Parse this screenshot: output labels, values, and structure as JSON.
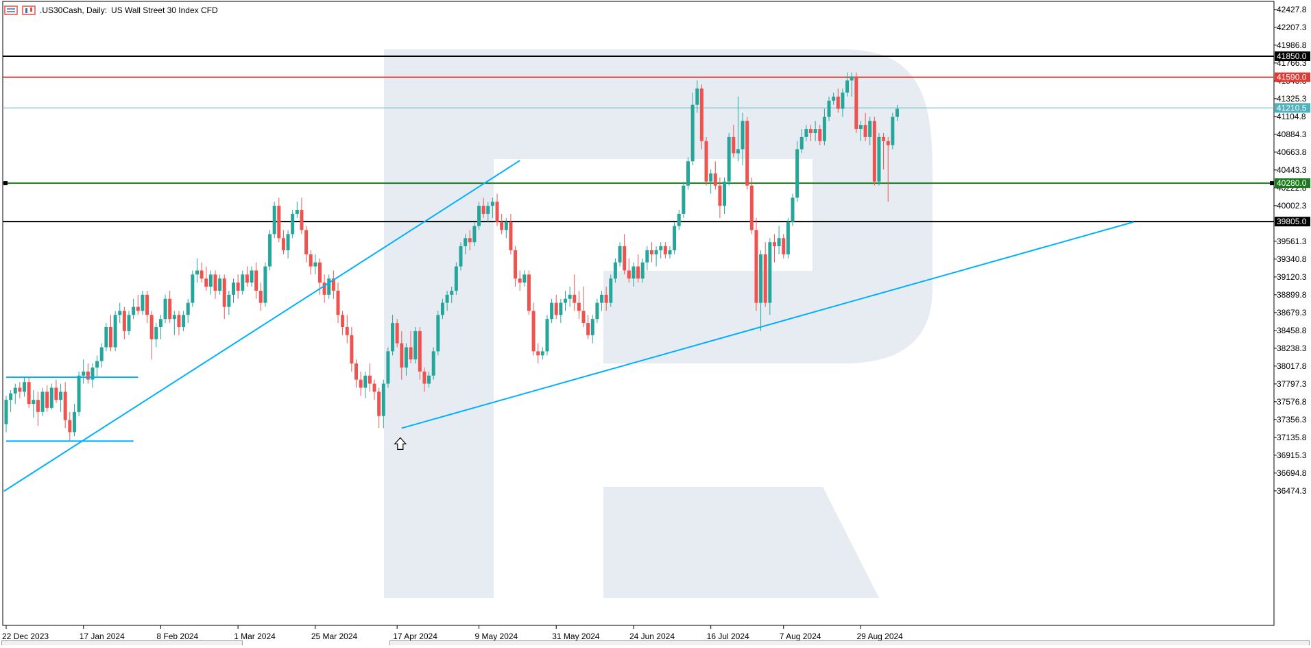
{
  "header": {
    "symbol_timeframe": ".US30Cash, Daily:",
    "description": "US Wall Street 30 Index CFD"
  },
  "colors": {
    "bull": "#26a69a",
    "bear": "#ef5350",
    "trendline": "#00b0ff",
    "resistance_black": "#000000",
    "resistance_red": "#e53935",
    "support_green": "#1b7a1b",
    "current_price": "#4fb3bf",
    "watermark": "#e7ecf3"
  },
  "chart_data": {
    "type": "candlestick",
    "y_ticks": [
      "42427.8",
      "42207.3",
      "41986.8",
      "41766.3",
      "41545.8",
      "41325.3",
      "41104.8",
      "40884.3",
      "40663.8",
      "40443.3",
      "40222.8",
      "40002.3",
      "39561.3",
      "39340.8",
      "39120.3",
      "38899.8",
      "38679.3",
      "38458.8",
      "38238.3",
      "38017.8",
      "37797.3",
      "37576.8",
      "37356.3",
      "37135.8",
      "36915.3",
      "36694.8",
      "36474.3"
    ],
    "x_ticks": [
      {
        "label": "22 Dec 2023",
        "index": 0
      },
      {
        "label": "17 Jan 2024",
        "index": 17
      },
      {
        "label": "8 Feb 2024",
        "index": 34
      },
      {
        "label": "1 Mar 2024",
        "index": 51
      },
      {
        "label": "25 Mar 2024",
        "index": 68
      },
      {
        "label": "17 Apr 2024",
        "index": 86
      },
      {
        "label": "9 May 2024",
        "index": 104
      },
      {
        "label": "31 May 2024",
        "index": 121
      },
      {
        "label": "24 Jun 2024",
        "index": 138
      },
      {
        "label": "16 Jul 2024",
        "index": 155
      },
      {
        "label": "7 Aug 2024",
        "index": 171
      },
      {
        "label": "29 Aug 2024",
        "index": 188
      }
    ],
    "levels": [
      {
        "name": "resistance-41850",
        "value": 41850.0,
        "label": "41850.0",
        "color": "#000000"
      },
      {
        "name": "resistance-41590",
        "value": 41590.0,
        "label": "41590.0",
        "color": "#e53935"
      },
      {
        "name": "current-price",
        "value": 41210.5,
        "label": "41210.5",
        "color": "#4fb3bf"
      },
      {
        "name": "support-40280",
        "value": 40280.0,
        "label": "40280.0",
        "color": "#1b7a1b"
      },
      {
        "name": "support-39805",
        "value": 39805.0,
        "label": "39805.0",
        "color": "#000000"
      }
    ],
    "trendlines": [
      {
        "name": "uptrend-line-1",
        "from": {
          "index": -0.5,
          "price": 36470
        },
        "to": {
          "index": 113,
          "price": 40560
        }
      },
      {
        "name": "uptrend-line-2",
        "from": {
          "index": 87,
          "price": 37250
        },
        "to": {
          "index": 248,
          "price": 39800
        }
      },
      {
        "name": "range-top",
        "from": {
          "index": 0,
          "price": 37880
        },
        "to": {
          "index": 29,
          "price": 37880
        }
      },
      {
        "name": "range-bottom",
        "from": {
          "index": 0,
          "price": 37090
        },
        "to": {
          "index": 28,
          "price": 37090
        }
      }
    ],
    "candles": [
      [
        37300,
        37650,
        37200,
        37600
      ],
      [
        37600,
        37720,
        37450,
        37680
      ],
      [
        37680,
        37800,
        37550,
        37750
      ],
      [
        37750,
        37820,
        37620,
        37700
      ],
      [
        37700,
        37870,
        37640,
        37820
      ],
      [
        37820,
        37880,
        37500,
        37550
      ],
      [
        37550,
        37720,
        37380,
        37600
      ],
      [
        37600,
        37700,
        37280,
        37450
      ],
      [
        37450,
        37750,
        37400,
        37700
      ],
      [
        37700,
        37780,
        37450,
        37500
      ],
      [
        37500,
        37800,
        37480,
        37750
      ],
      [
        37750,
        37850,
        37560,
        37600
      ],
      [
        37600,
        37800,
        37450,
        37700
      ],
      [
        37700,
        37820,
        37250,
        37350
      ],
      [
        37350,
        37450,
        37100,
        37200
      ],
      [
        37200,
        37550,
        37150,
        37450
      ],
      [
        37450,
        37950,
        37400,
        37900
      ],
      [
        37900,
        38100,
        37800,
        37950
      ],
      [
        37950,
        38050,
        37800,
        37850
      ],
      [
        37850,
        38050,
        37750,
        38000
      ],
      [
        38000,
        38150,
        37880,
        38080
      ],
      [
        38080,
        38300,
        38000,
        38250
      ],
      [
        38250,
        38550,
        38200,
        38500
      ],
      [
        38500,
        38650,
        38200,
        38250
      ],
      [
        38250,
        38700,
        38200,
        38650
      ],
      [
        38650,
        38800,
        38550,
        38700
      ],
      [
        38700,
        38750,
        38350,
        38450
      ],
      [
        38450,
        38700,
        38400,
        38650
      ],
      [
        38650,
        38850,
        38600,
        38750
      ],
      [
        38750,
        38900,
        38650,
        38700
      ],
      [
        38700,
        38950,
        38650,
        38900
      ],
      [
        38900,
        38950,
        38550,
        38650
      ],
      [
        38650,
        38700,
        38100,
        38350
      ],
      [
        38350,
        38550,
        38250,
        38500
      ],
      [
        38500,
        38650,
        38350,
        38600
      ],
      [
        38600,
        38900,
        38550,
        38850
      ],
      [
        38850,
        38950,
        38550,
        38600
      ],
      [
        38600,
        38700,
        38400,
        38650
      ],
      [
        38650,
        38700,
        38400,
        38500
      ],
      [
        38500,
        38700,
        38450,
        38650
      ],
      [
        38650,
        38850,
        38550,
        38800
      ],
      [
        38800,
        39200,
        38750,
        39150
      ],
      [
        39150,
        39350,
        39050,
        39200
      ],
      [
        39200,
        39300,
        39050,
        39100
      ],
      [
        39100,
        39250,
        38950,
        39000
      ],
      [
        39000,
        39200,
        38900,
        39150
      ],
      [
        39150,
        39200,
        38850,
        38950
      ],
      [
        38950,
        39150,
        38900,
        39100
      ],
      [
        39100,
        39150,
        38600,
        38750
      ],
      [
        38750,
        38950,
        38650,
        38900
      ],
      [
        38900,
        39100,
        38800,
        39050
      ],
      [
        39050,
        39150,
        38850,
        38950
      ],
      [
        38950,
        39200,
        38900,
        39150
      ],
      [
        39150,
        39250,
        39000,
        39050
      ],
      [
        39050,
        39250,
        39000,
        39200
      ],
      [
        39200,
        39300,
        38850,
        38950
      ],
      [
        38950,
        39050,
        38700,
        38800
      ],
      [
        38800,
        39300,
        38750,
        39250
      ],
      [
        39250,
        39700,
        39200,
        39650
      ],
      [
        39650,
        40050,
        39600,
        40000
      ],
      [
        40000,
        40100,
        39550,
        39600
      ],
      [
        39600,
        39700,
        39400,
        39450
      ],
      [
        39450,
        39700,
        39350,
        39650
      ],
      [
        39650,
        39950,
        39600,
        39900
      ],
      [
        39900,
        40050,
        39850,
        39950
      ],
      [
        39950,
        40100,
        39650,
        39700
      ],
      [
        39700,
        39750,
        39300,
        39400
      ],
      [
        39400,
        39450,
        39150,
        39250
      ],
      [
        39250,
        39400,
        39150,
        39300
      ],
      [
        39300,
        39350,
        38900,
        39050
      ],
      [
        39050,
        39150,
        38800,
        38900
      ],
      [
        38900,
        39150,
        38850,
        39100
      ],
      [
        39100,
        39200,
        38850,
        38950
      ],
      [
        38950,
        39050,
        38550,
        38650
      ],
      [
        38650,
        38700,
        38400,
        38500
      ],
      [
        38500,
        38650,
        38300,
        38400
      ],
      [
        38400,
        38500,
        37950,
        38050
      ],
      [
        38050,
        38100,
        37750,
        37850
      ],
      [
        37850,
        37950,
        37650,
        37750
      ],
      [
        37750,
        37950,
        37620,
        37900
      ],
      [
        37900,
        38050,
        37700,
        37800
      ],
      [
        37800,
        37850,
        37600,
        37700
      ],
      [
        37700,
        37750,
        37250,
        37400
      ],
      [
        37400,
        37850,
        37250,
        37800
      ],
      [
        37800,
        38250,
        37750,
        38200
      ],
      [
        38200,
        38650,
        38150,
        38550
      ],
      [
        38550,
        38600,
        38250,
        38300
      ],
      [
        38300,
        38450,
        37850,
        38000
      ],
      [
        38000,
        38300,
        37900,
        38250
      ],
      [
        38250,
        38450,
        38050,
        38100
      ],
      [
        38100,
        38500,
        38050,
        38450
      ],
      [
        38450,
        38500,
        37850,
        37950
      ],
      [
        37950,
        38000,
        37700,
        37800
      ],
      [
        37800,
        37950,
        37750,
        37900
      ],
      [
        37900,
        38250,
        37850,
        38200
      ],
      [
        38200,
        38700,
        38150,
        38650
      ],
      [
        38650,
        38850,
        38600,
        38800
      ],
      [
        38800,
        38950,
        38700,
        38900
      ],
      [
        38900,
        39000,
        38800,
        38950
      ],
      [
        38950,
        39300,
        38900,
        39250
      ],
      [
        39250,
        39550,
        39200,
        39500
      ],
      [
        39500,
        39650,
        39400,
        39600
      ],
      [
        39600,
        39700,
        39450,
        39550
      ],
      [
        39550,
        39800,
        39500,
        39750
      ],
      [
        39750,
        40050,
        39700,
        40000
      ],
      [
        40000,
        40100,
        39850,
        39900
      ],
      [
        39900,
        40050,
        39800,
        40000
      ],
      [
        40000,
        40100,
        39850,
        40050
      ],
      [
        40050,
        40150,
        39750,
        39800
      ],
      [
        39800,
        39900,
        39650,
        39700
      ],
      [
        39700,
        39850,
        39600,
        39800
      ],
      [
        39800,
        39900,
        39400,
        39450
      ],
      [
        39450,
        39500,
        39000,
        39100
      ],
      [
        39100,
        39200,
        38950,
        39050
      ],
      [
        39050,
        39200,
        39000,
        39150
      ],
      [
        39150,
        39200,
        38650,
        38700
      ],
      [
        38700,
        38800,
        38150,
        38200
      ],
      [
        38200,
        38300,
        38050,
        38150
      ],
      [
        38150,
        38250,
        38100,
        38200
      ],
      [
        38200,
        38650,
        38150,
        38600
      ],
      [
        38600,
        38850,
        38550,
        38800
      ],
      [
        38800,
        38900,
        38600,
        38650
      ],
      [
        38650,
        38850,
        38550,
        38800
      ],
      [
        38800,
        38950,
        38700,
        38850
      ],
      [
        38850,
        39000,
        38750,
        38900
      ],
      [
        38900,
        39150,
        38700,
        38800
      ],
      [
        38800,
        38950,
        38600,
        38700
      ],
      [
        38700,
        39000,
        38500,
        38550
      ],
      [
        38550,
        38650,
        38350,
        38400
      ],
      [
        38400,
        38650,
        38300,
        38600
      ],
      [
        38600,
        38850,
        38550,
        38800
      ],
      [
        38800,
        38950,
        38700,
        38900
      ],
      [
        38900,
        39000,
        38700,
        38800
      ],
      [
        38800,
        39150,
        38750,
        39100
      ],
      [
        39100,
        39350,
        39050,
        39300
      ],
      [
        39300,
        39550,
        39250,
        39500
      ],
      [
        39500,
        39650,
        39150,
        39200
      ],
      [
        39200,
        39350,
        39050,
        39100
      ],
      [
        39100,
        39300,
        39000,
        39250
      ],
      [
        39250,
        39400,
        39050,
        39100
      ],
      [
        39100,
        39350,
        39050,
        39300
      ],
      [
        39300,
        39500,
        39200,
        39450
      ],
      [
        39450,
        39550,
        39300,
        39400
      ],
      [
        39400,
        39500,
        39250,
        39450
      ],
      [
        39450,
        39550,
        39350,
        39500
      ],
      [
        39500,
        39550,
        39350,
        39400
      ],
      [
        39400,
        39500,
        39350,
        39450
      ],
      [
        39450,
        39800,
        39400,
        39750
      ],
      [
        39750,
        39950,
        39700,
        39900
      ],
      [
        39900,
        40300,
        39850,
        40250
      ],
      [
        40250,
        40600,
        40200,
        40550
      ],
      [
        40550,
        41400,
        40500,
        41250
      ],
      [
        41250,
        41550,
        41150,
        41450
      ],
      [
        41450,
        41500,
        40700,
        40800
      ],
      [
        40800,
        40850,
        40250,
        40300
      ],
      [
        40300,
        40450,
        40150,
        40400
      ],
      [
        40400,
        40550,
        40200,
        40250
      ],
      [
        40250,
        40350,
        39850,
        40000
      ],
      [
        40000,
        40350,
        39900,
        40300
      ],
      [
        40300,
        40900,
        40250,
        40850
      ],
      [
        40850,
        41000,
        40600,
        40650
      ],
      [
        40650,
        41350,
        40550,
        40700
      ],
      [
        40700,
        41150,
        40500,
        41050
      ],
      [
        41050,
        41100,
        40200,
        40250
      ],
      [
        40250,
        40350,
        39650,
        39700
      ],
      [
        39700,
        39850,
        38700,
        38800
      ],
      [
        38800,
        39450,
        38450,
        39400
      ],
      [
        39400,
        39550,
        38750,
        38800
      ],
      [
        38800,
        39600,
        38650,
        39550
      ],
      [
        39550,
        39650,
        39300,
        39500
      ],
      [
        39500,
        39750,
        39400,
        39600
      ],
      [
        39600,
        39650,
        39350,
        39400
      ],
      [
        39400,
        39850,
        39350,
        39800
      ],
      [
        39800,
        40150,
        39750,
        40100
      ],
      [
        40100,
        40800,
        40050,
        40700
      ],
      [
        40700,
        40950,
        40650,
        40850
      ],
      [
        40850,
        41000,
        40800,
        40950
      ],
      [
        40950,
        41000,
        40800,
        40900
      ],
      [
        40900,
        41050,
        40800,
        40950
      ],
      [
        40950,
        41000,
        40750,
        40800
      ],
      [
        40800,
        41200,
        40750,
        41100
      ],
      [
        41100,
        41350,
        41050,
        41300
      ],
      [
        41300,
        41400,
        41250,
        41350
      ],
      [
        41350,
        41450,
        41150,
        41200
      ],
      [
        41200,
        41450,
        41100,
        41400
      ],
      [
        41400,
        41650,
        41350,
        41550
      ],
      [
        41550,
        41650,
        41350,
        41600
      ],
      [
        41600,
        41650,
        40900,
        40950
      ],
      [
        40950,
        41050,
        40800,
        41000
      ],
      [
        41000,
        41150,
        40800,
        40850
      ],
      [
        40850,
        41100,
        40750,
        41050
      ],
      [
        41050,
        41100,
        40250,
        40300
      ],
      [
        40300,
        40900,
        40250,
        40850
      ],
      [
        40850,
        40900,
        40450,
        40800
      ],
      [
        40800,
        40850,
        40050,
        40750
      ],
      [
        40750,
        41150,
        40700,
        41100
      ],
      [
        41100,
        41250,
        41050,
        41200
      ]
    ]
  }
}
